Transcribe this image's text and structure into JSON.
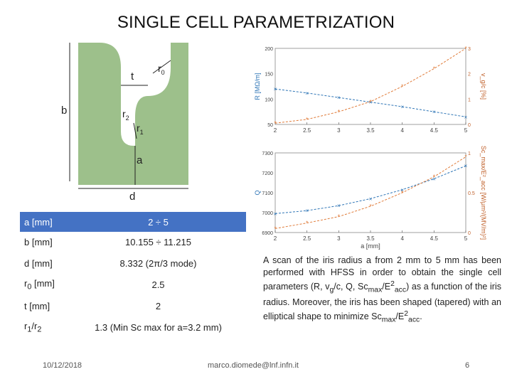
{
  "slide": {
    "title": "SINGLE CELL PARAMETRIZATION",
    "footer_date": "10/12/2018",
    "footer_email": "marco.diomede@lnf.infn.it",
    "page_number": "6",
    "fill_color": "#9dc08b",
    "accent_color": "#4472c4"
  },
  "diagram": {
    "labels": {
      "t": "t",
      "r0": "r",
      "r0_sub": "0",
      "r2": "r",
      "r2_sub": "2",
      "r1": "r",
      "r1_sub": "1",
      "a": "a",
      "b": "b",
      "d": "d"
    }
  },
  "table": {
    "header": {
      "param": "a [mm]",
      "value": "2 ÷ 5"
    },
    "rows": [
      {
        "param": "b [mm]",
        "value": "10.155 ÷ 11.215"
      },
      {
        "param": "d [mm]",
        "value": "8.332 (2π/3 mode)"
      },
      {
        "param_main": "r",
        "param_sub": "0",
        "param_rest": " [mm]",
        "value": "2.5"
      },
      {
        "param": "t [mm]",
        "value": "2"
      },
      {
        "param_main": "r",
        "param_sub": "1",
        "param_mid": "/r",
        "param_sub2": "2",
        "value": "1.3 (Min Sc max for a=3.2 mm)"
      }
    ]
  },
  "description": {
    "p1": "A scan of the iris radius a from 2 mm to 5 mm has been performed with HFSS in order to obtain the single cell parameters (R, v",
    "p1_sub_g": "g",
    "p1b": "/c, Q, Sc",
    "p1_sub_max": "max",
    "p1c": "/E",
    "p1_sup_2": "2",
    "p1_sub_acc": "acc",
    "p1d": ") as a function of the iris radius. Moreover, the iris has been shaped (tapered) with an elliptical shape to minimize Sc",
    "p2_sub_max": "max",
    "p2": "/E",
    "p2_sup_2": "2",
    "p2_sub_acc": "acc",
    "p2_end": "."
  },
  "chart_data": [
    {
      "type": "line",
      "x": [
        2,
        2.5,
        3,
        3.5,
        4,
        4.5,
        5
      ],
      "xlim": [
        2,
        5
      ],
      "xticks": [
        "2",
        "2.5",
        "3",
        "3.5",
        "4",
        "4.5",
        "5"
      ],
      "y_left": {
        "label": "R [MΩ/m]",
        "ticks": [
          "200",
          "150",
          "100",
          "50"
        ],
        "ylim": [
          50,
          200
        ]
      },
      "y_right": {
        "label": "v_g/c [%]",
        "ticks": [
          "3",
          "2",
          "1",
          "0"
        ],
        "ylim": [
          0,
          3
        ]
      },
      "series": [
        {
          "axis": "left",
          "color": "#2e75b6",
          "values": [
            120,
            112,
            103,
            94,
            85,
            75,
            65
          ]
        },
        {
          "axis": "right",
          "color": "#e07b39",
          "values": [
            0.05,
            0.2,
            0.5,
            0.9,
            1.5,
            2.2,
            3.0
          ]
        }
      ]
    },
    {
      "type": "line",
      "x": [
        2,
        2.5,
        3,
        3.5,
        4,
        4.5,
        5
      ],
      "xlim": [
        2,
        5
      ],
      "xticks": [
        "2",
        "2.5",
        "3",
        "3.5",
        "4",
        "4.5",
        "5"
      ],
      "xlabel": "a [mm]",
      "y_left": {
        "label": "Q",
        "ticks": [
          "7300",
          "7200",
          "7100",
          "7000",
          "6900"
        ],
        "ylim": [
          6900,
          7300
        ]
      },
      "y_right": {
        "label": "Sc_max/E²_acc [W/μm²/(MV/m)²]",
        "ticks": [
          "1",
          "0.5",
          "0"
        ],
        "ylim": [
          0,
          1
        ]
      },
      "series": [
        {
          "axis": "left",
          "color": "#2e75b6",
          "values": [
            6995,
            7010,
            7035,
            7070,
            7115,
            7170,
            7235
          ]
        },
        {
          "axis": "right",
          "color": "#e07b39",
          "values": [
            0.05,
            0.12,
            0.2,
            0.33,
            0.5,
            0.7,
            0.95
          ]
        }
      ]
    }
  ]
}
